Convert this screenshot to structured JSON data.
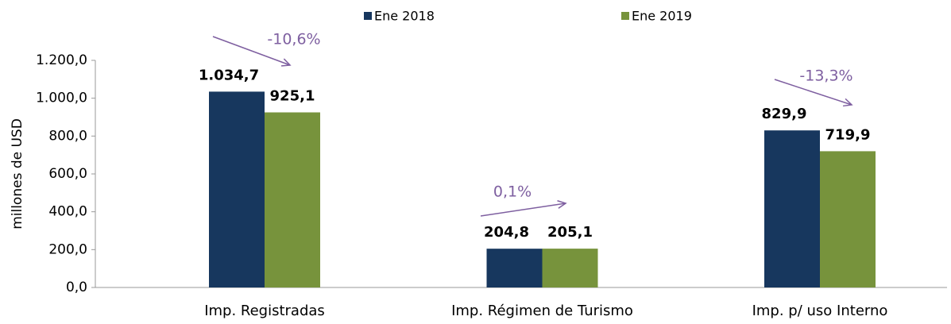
{
  "chart_data": {
    "type": "bar",
    "categories": [
      "Imp. Registradas",
      "Imp. Régimen de Turismo",
      "Imp. p/ uso Interno"
    ],
    "series": [
      {
        "name": "Ene 2018",
        "color": "#17375e",
        "values": [
          1034.7,
          204.8,
          829.9
        ],
        "value_labels": [
          "1.034,7",
          "204,8",
          "829,9"
        ]
      },
      {
        "name": "Ene 2019",
        "color": "#77933c",
        "values": [
          925.1,
          205.1,
          719.9
        ],
        "value_labels": [
          "925,1",
          "205,1",
          "719,9"
        ]
      }
    ],
    "y_label": "millones de USD",
    "ylim": [
      0,
      1200
    ],
    "yticks": [
      {
        "value": 0,
        "label": "0,0"
      },
      {
        "value": 200,
        "label": "200,0"
      },
      {
        "value": 400,
        "label": "400,0"
      },
      {
        "value": 600,
        "label": "600,0"
      },
      {
        "value": 800,
        "label": "800,0"
      },
      {
        "value": 1000,
        "label": "1.000,0"
      },
      {
        "value": 1200,
        "label": "1.200,0"
      }
    ],
    "annotations": [
      "-10,6%",
      "0,1%",
      "-13,3%"
    ],
    "legend_position": "top"
  }
}
